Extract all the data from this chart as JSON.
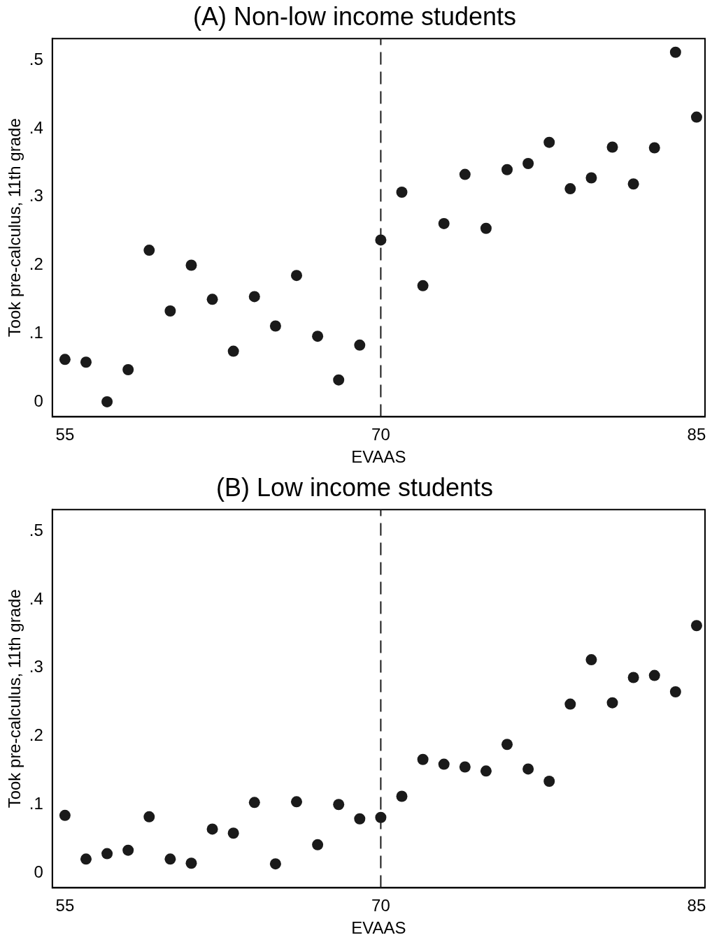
{
  "chart_data": [
    {
      "type": "scatter",
      "title": "(A) Non-low income students",
      "xlabel": "EVAAS",
      "ylabel": "Took pre-calculus, 11th grade",
      "x": [
        55,
        56,
        57,
        58,
        59,
        60,
        61,
        62,
        63,
        64,
        65,
        66,
        67,
        68,
        69,
        70,
        71,
        72,
        73,
        74,
        75,
        76,
        77,
        78,
        79,
        80,
        81,
        82,
        83,
        84,
        85
      ],
      "values": [
        0.062,
        0.058,
        0,
        0.047,
        0.222,
        0.133,
        0.2,
        0.15,
        0.074,
        0.154,
        0.111,
        0.185,
        0.096,
        0.032,
        0.083,
        0.237,
        0.307,
        0.17,
        0.261,
        0.333,
        0.254,
        0.34,
        0.349,
        0.38,
        0.312,
        0.328,
        0.373,
        0.319,
        0.372,
        0.512,
        0.417
      ],
      "color": "#1a1a1a",
      "marker": "circle",
      "xlim": [
        54.4,
        85.4
      ],
      "ylim": [
        -0.022,
        0.532
      ],
      "xticks": [
        55,
        70,
        85
      ],
      "yticks": [
        {
          "value": 0,
          "label": "0"
        },
        {
          "value": 0.1,
          "label": ".1"
        },
        {
          "value": 0.2,
          "label": ".2"
        },
        {
          "value": 0.3,
          "label": ".3"
        },
        {
          "value": 0.4,
          "label": ".4"
        },
        {
          "value": 0.5,
          "label": ".5"
        }
      ],
      "ref_lines": [
        {
          "axis": "x",
          "value": 70,
          "line_style": "dashed",
          "color": "#1a1a1a"
        }
      ]
    },
    {
      "type": "scatter",
      "title": "(B) Low income students",
      "xlabel": "EVAAS",
      "ylabel": "Took pre-calculus, 11th grade",
      "x": [
        55,
        56,
        57,
        58,
        59,
        60,
        61,
        62,
        63,
        64,
        65,
        66,
        67,
        68,
        69,
        70,
        71,
        72,
        73,
        74,
        75,
        76,
        77,
        78,
        79,
        80,
        81,
        82,
        83,
        84,
        85
      ],
      "values": [
        0.084,
        0.02,
        0.028,
        0.033,
        0.082,
        0.02,
        0.014,
        0.064,
        0.058,
        0.103,
        0.013,
        0.104,
        0.041,
        0.1,
        0.079,
        0.081,
        0.112,
        0.166,
        0.159,
        0.155,
        0.149,
        0.188,
        0.152,
        0.134,
        0.247,
        0.312,
        0.249,
        0.286,
        0.289,
        0.265,
        0.362
      ],
      "color": "#1a1a1a",
      "marker": "circle",
      "xlim": [
        54.4,
        85.4
      ],
      "ylim": [
        -0.022,
        0.532
      ],
      "xticks": [
        55,
        70,
        85
      ],
      "yticks": [
        {
          "value": 0,
          "label": "0"
        },
        {
          "value": 0.1,
          "label": ".1"
        },
        {
          "value": 0.2,
          "label": ".2"
        },
        {
          "value": 0.3,
          "label": ".3"
        },
        {
          "value": 0.4,
          "label": ".4"
        },
        {
          "value": 0.5,
          "label": ".5"
        }
      ],
      "ref_lines": [
        {
          "axis": "x",
          "value": 70,
          "line_style": "dashed",
          "color": "#1a1a1a"
        }
      ]
    }
  ]
}
